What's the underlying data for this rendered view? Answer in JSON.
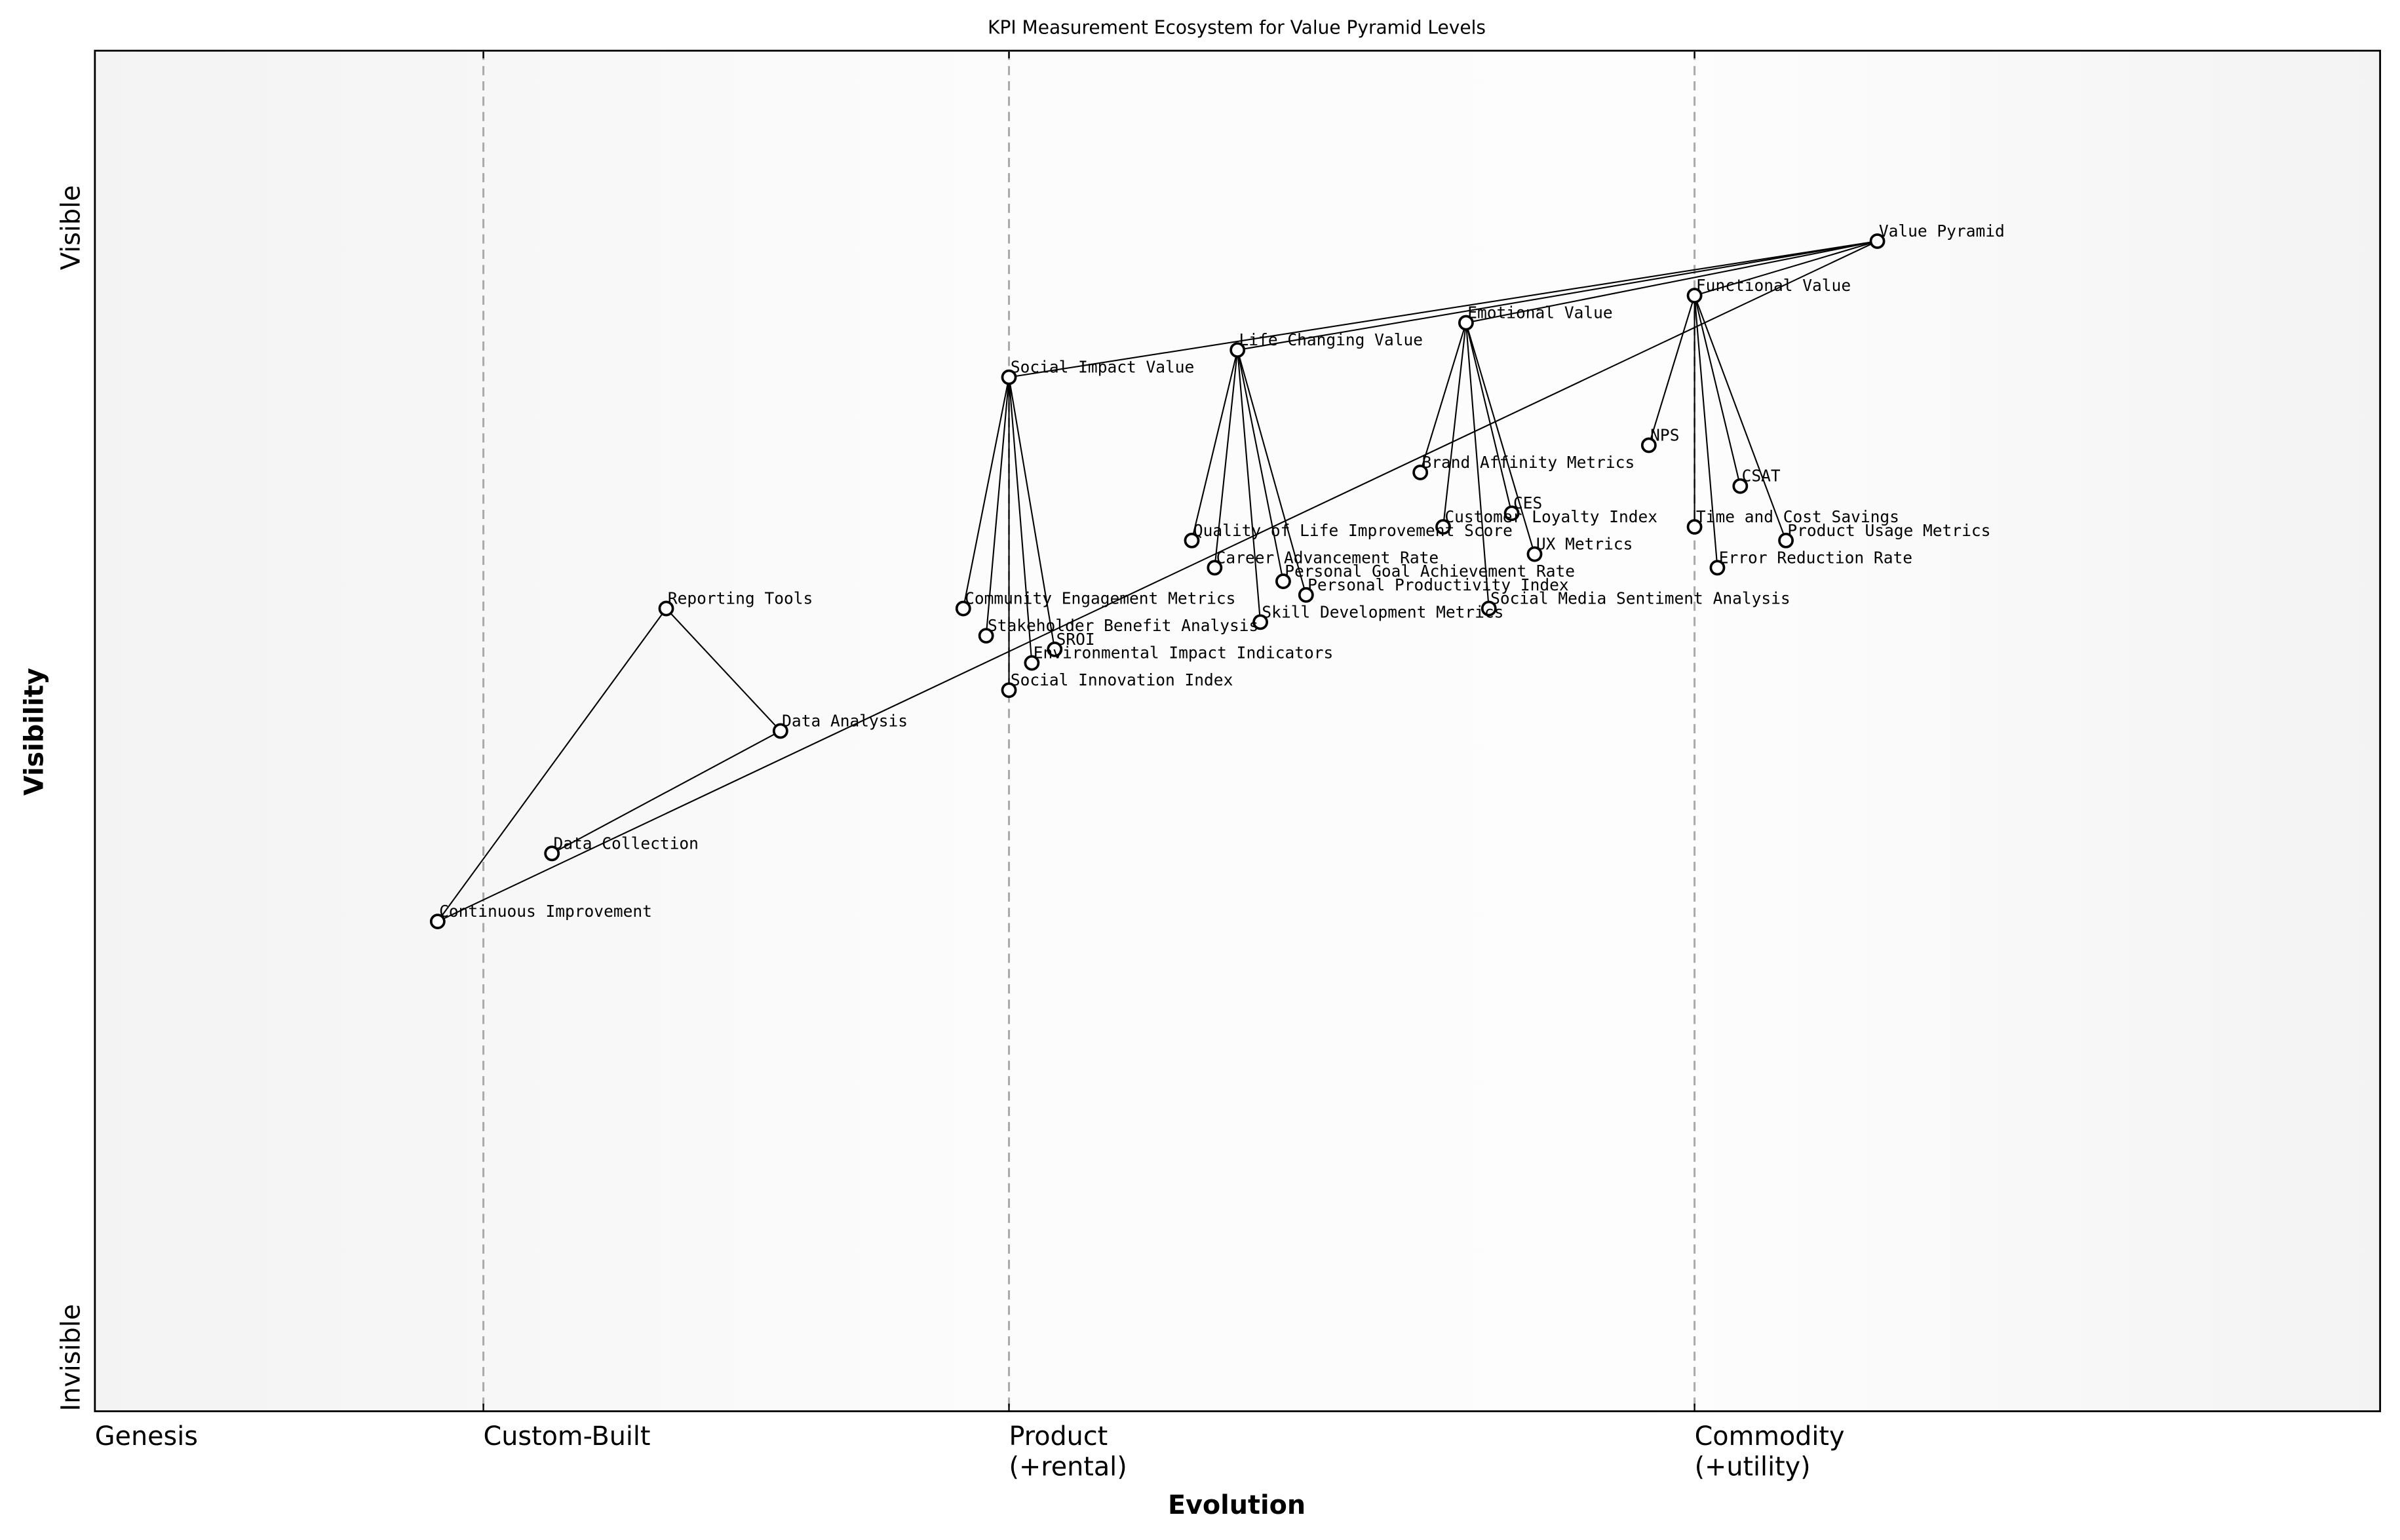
{
  "chart_data": {
    "type": "scatter",
    "title": "KPI Measurement Ecosystem for Value Pyramid Levels",
    "xlabel": "Evolution",
    "ylabel": "Visibility",
    "xlim": [
      0,
      1
    ],
    "ylim": [
      0,
      1
    ],
    "xticks": [
      {
        "value": 0,
        "label": "Genesis"
      },
      {
        "value": 0.17,
        "label": "Custom-Built"
      },
      {
        "value": 0.4,
        "label": "Product\n(+rental)"
      },
      {
        "value": 0.7,
        "label": "Commodity\n(+utility)"
      }
    ],
    "yticks": [
      {
        "value": 0,
        "label": "Invisible"
      },
      {
        "value": 0.87,
        "label": "Visible"
      }
    ],
    "labels": [
      "Value Pyramid",
      "Functional Value",
      "Emotional Value",
      "Life Changing Value",
      "Social Impact Value",
      "NPS",
      "CSAT",
      "Time and Cost Savings",
      "Product Usage Metrics",
      "Error Reduction Rate",
      "Brand Affinity Metrics",
      "CES",
      "Customer Loyalty Index",
      "UX Metrics",
      "Social Media Sentiment Analysis",
      "Quality of Life Improvement Score",
      "Career Advancement Rate",
      "Personal Goal Achievement Rate",
      "Personal Productivity Index",
      "Skill Development Metrics",
      "Community Engagement Metrics",
      "Stakeholder Benefit Analysis",
      "SROI",
      "Environmental Impact Indicators",
      "Social Innovation Index",
      "Reporting Tools",
      "Data Analysis",
      "Data Collection",
      "Continuous Improvement"
    ],
    "x": [
      0.78,
      0.7,
      0.6,
      0.5,
      0.4,
      0.68,
      0.72,
      0.7,
      0.74,
      0.71,
      0.58,
      0.62,
      0.59,
      0.63,
      0.61,
      0.48,
      0.49,
      0.52,
      0.53,
      0.51,
      0.38,
      0.39,
      0.42,
      0.41,
      0.4,
      0.25,
      0.3,
      0.2,
      0.15
    ],
    "y": [
      0.86,
      0.82,
      0.8,
      0.78,
      0.76,
      0.71,
      0.68,
      0.65,
      0.64,
      0.62,
      0.69,
      0.66,
      0.65,
      0.63,
      0.59,
      0.64,
      0.62,
      0.61,
      0.6,
      0.58,
      0.59,
      0.57,
      0.56,
      0.55,
      0.53,
      0.59,
      0.5,
      0.41,
      0.36
    ],
    "links": [
      [
        0,
        1
      ],
      [
        0,
        2
      ],
      [
        0,
        3
      ],
      [
        0,
        4
      ],
      [
        0,
        28
      ],
      [
        1,
        5
      ],
      [
        1,
        6
      ],
      [
        1,
        7
      ],
      [
        1,
        8
      ],
      [
        1,
        9
      ],
      [
        2,
        10
      ],
      [
        2,
        11
      ],
      [
        2,
        12
      ],
      [
        2,
        13
      ],
      [
        2,
        14
      ],
      [
        3,
        15
      ],
      [
        3,
        16
      ],
      [
        3,
        17
      ],
      [
        3,
        18
      ],
      [
        3,
        19
      ],
      [
        4,
        20
      ],
      [
        4,
        21
      ],
      [
        4,
        22
      ],
      [
        4,
        23
      ],
      [
        4,
        24
      ],
      [
        28,
        25
      ],
      [
        25,
        26
      ],
      [
        26,
        27
      ]
    ]
  }
}
